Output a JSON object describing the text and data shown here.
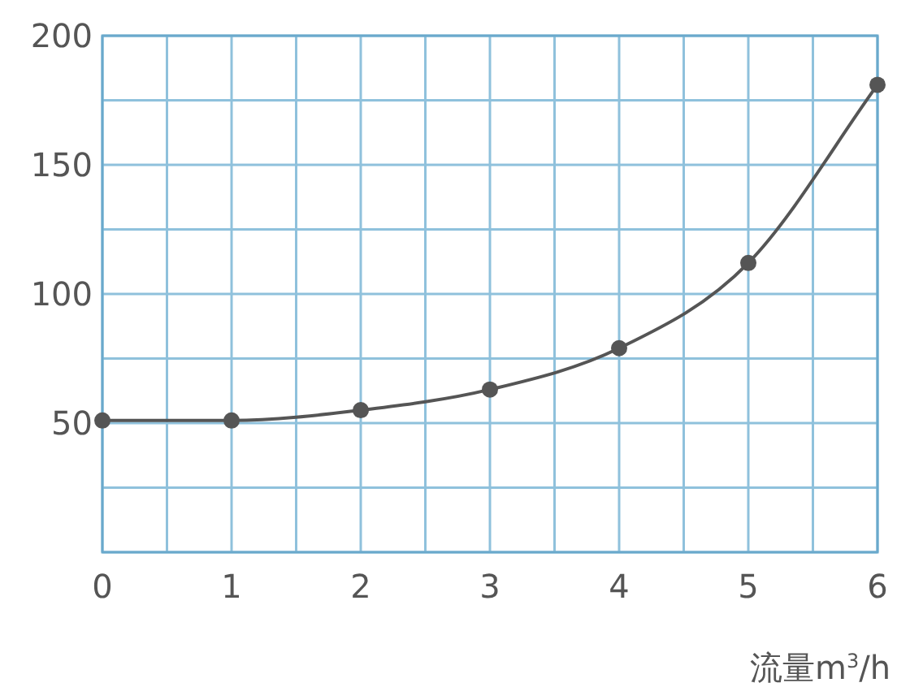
{
  "chart_data": {
    "type": "line",
    "xlabel": "流量m$^{3}$/h",
    "x": [
      0,
      1,
      2,
      3,
      4,
      5,
      6
    ],
    "series": [
      {
        "color": "#555555",
        "values": [
          51,
          51,
          55,
          63,
          79,
          112,
          181
        ]
      }
    ],
    "xlim": [
      0,
      6
    ],
    "ylim": [
      0,
      200
    ],
    "xticks": [
      0,
      {
        "value": 0.5,
        "label": null
      },
      1,
      {
        "value": 1.5,
        "label": null
      },
      2,
      {
        "value": 2.5,
        "label": null
      },
      3,
      {
        "value": 3.5,
        "label": null
      },
      4,
      {
        "value": 4.5,
        "label": null
      },
      5,
      {
        "value": 5.5,
        "label": null
      },
      6
    ],
    "yticks": [
      {
        "value": 0,
        "label": null
      },
      {
        "value": 25,
        "label": null
      },
      50,
      {
        "value": 75,
        "label": null
      },
      100,
      {
        "value": 125,
        "label": null
      },
      150,
      {
        "value": 175,
        "label": null
      },
      200
    ],
    "grid": true,
    "marker": "circle",
    "line_style": "solid"
  }
}
